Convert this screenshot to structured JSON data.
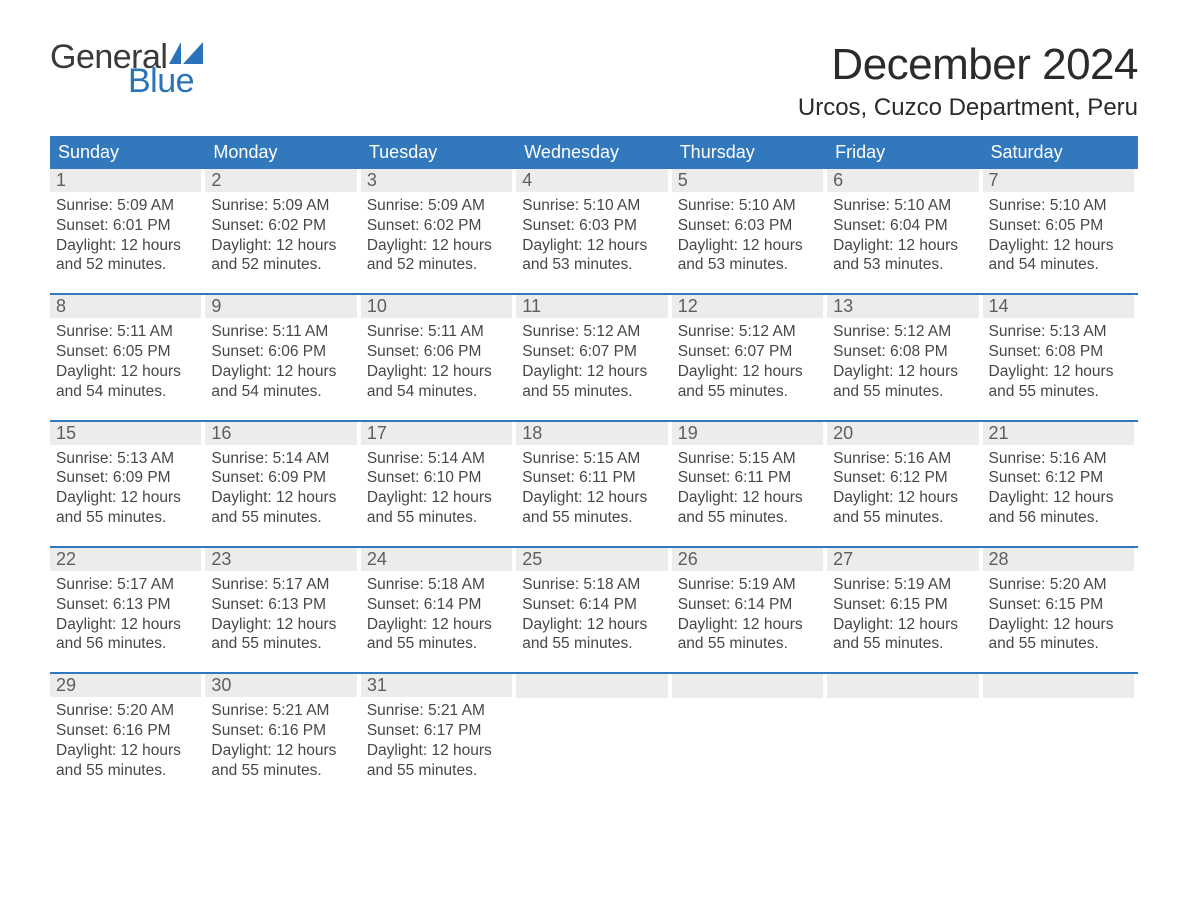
{
  "brand": {
    "word1": "General",
    "word2": "Blue",
    "word1_color": "#3a3a3a",
    "word2_color": "#2a73b8",
    "flag_color": "#2a73b8"
  },
  "header": {
    "month_title": "December 2024",
    "location": "Urcos, Cuzco Department, Peru"
  },
  "colors": {
    "header_bg": "#3178bd",
    "header_text": "#ffffff",
    "daynum_bg": "#ececec",
    "daynum_text": "#5f5f5f",
    "body_text": "#474747",
    "week_divider": "#3178bd",
    "page_bg": "#ffffff"
  },
  "typography": {
    "month_title_size_pt": 33,
    "location_size_pt": 18,
    "weekday_size_pt": 14,
    "daynum_size_pt": 14,
    "body_size_pt": 12
  },
  "calendar": {
    "type": "calendar-grid",
    "columns": 7,
    "weekdays": [
      "Sunday",
      "Monday",
      "Tuesday",
      "Wednesday",
      "Thursday",
      "Friday",
      "Saturday"
    ],
    "weeks": [
      [
        {
          "n": "1",
          "sunrise": "Sunrise: 5:09 AM",
          "sunset": "Sunset: 6:01 PM",
          "dl1": "Daylight: 12 hours",
          "dl2": "and 52 minutes."
        },
        {
          "n": "2",
          "sunrise": "Sunrise: 5:09 AM",
          "sunset": "Sunset: 6:02 PM",
          "dl1": "Daylight: 12 hours",
          "dl2": "and 52 minutes."
        },
        {
          "n": "3",
          "sunrise": "Sunrise: 5:09 AM",
          "sunset": "Sunset: 6:02 PM",
          "dl1": "Daylight: 12 hours",
          "dl2": "and 52 minutes."
        },
        {
          "n": "4",
          "sunrise": "Sunrise: 5:10 AM",
          "sunset": "Sunset: 6:03 PM",
          "dl1": "Daylight: 12 hours",
          "dl2": "and 53 minutes."
        },
        {
          "n": "5",
          "sunrise": "Sunrise: 5:10 AM",
          "sunset": "Sunset: 6:03 PM",
          "dl1": "Daylight: 12 hours",
          "dl2": "and 53 minutes."
        },
        {
          "n": "6",
          "sunrise": "Sunrise: 5:10 AM",
          "sunset": "Sunset: 6:04 PM",
          "dl1": "Daylight: 12 hours",
          "dl2": "and 53 minutes."
        },
        {
          "n": "7",
          "sunrise": "Sunrise: 5:10 AM",
          "sunset": "Sunset: 6:05 PM",
          "dl1": "Daylight: 12 hours",
          "dl2": "and 54 minutes."
        }
      ],
      [
        {
          "n": "8",
          "sunrise": "Sunrise: 5:11 AM",
          "sunset": "Sunset: 6:05 PM",
          "dl1": "Daylight: 12 hours",
          "dl2": "and 54 minutes."
        },
        {
          "n": "9",
          "sunrise": "Sunrise: 5:11 AM",
          "sunset": "Sunset: 6:06 PM",
          "dl1": "Daylight: 12 hours",
          "dl2": "and 54 minutes."
        },
        {
          "n": "10",
          "sunrise": "Sunrise: 5:11 AM",
          "sunset": "Sunset: 6:06 PM",
          "dl1": "Daylight: 12 hours",
          "dl2": "and 54 minutes."
        },
        {
          "n": "11",
          "sunrise": "Sunrise: 5:12 AM",
          "sunset": "Sunset: 6:07 PM",
          "dl1": "Daylight: 12 hours",
          "dl2": "and 55 minutes."
        },
        {
          "n": "12",
          "sunrise": "Sunrise: 5:12 AM",
          "sunset": "Sunset: 6:07 PM",
          "dl1": "Daylight: 12 hours",
          "dl2": "and 55 minutes."
        },
        {
          "n": "13",
          "sunrise": "Sunrise: 5:12 AM",
          "sunset": "Sunset: 6:08 PM",
          "dl1": "Daylight: 12 hours",
          "dl2": "and 55 minutes."
        },
        {
          "n": "14",
          "sunrise": "Sunrise: 5:13 AM",
          "sunset": "Sunset: 6:08 PM",
          "dl1": "Daylight: 12 hours",
          "dl2": "and 55 minutes."
        }
      ],
      [
        {
          "n": "15",
          "sunrise": "Sunrise: 5:13 AM",
          "sunset": "Sunset: 6:09 PM",
          "dl1": "Daylight: 12 hours",
          "dl2": "and 55 minutes."
        },
        {
          "n": "16",
          "sunrise": "Sunrise: 5:14 AM",
          "sunset": "Sunset: 6:09 PM",
          "dl1": "Daylight: 12 hours",
          "dl2": "and 55 minutes."
        },
        {
          "n": "17",
          "sunrise": "Sunrise: 5:14 AM",
          "sunset": "Sunset: 6:10 PM",
          "dl1": "Daylight: 12 hours",
          "dl2": "and 55 minutes."
        },
        {
          "n": "18",
          "sunrise": "Sunrise: 5:15 AM",
          "sunset": "Sunset: 6:11 PM",
          "dl1": "Daylight: 12 hours",
          "dl2": "and 55 minutes."
        },
        {
          "n": "19",
          "sunrise": "Sunrise: 5:15 AM",
          "sunset": "Sunset: 6:11 PM",
          "dl1": "Daylight: 12 hours",
          "dl2": "and 55 minutes."
        },
        {
          "n": "20",
          "sunrise": "Sunrise: 5:16 AM",
          "sunset": "Sunset: 6:12 PM",
          "dl1": "Daylight: 12 hours",
          "dl2": "and 55 minutes."
        },
        {
          "n": "21",
          "sunrise": "Sunrise: 5:16 AM",
          "sunset": "Sunset: 6:12 PM",
          "dl1": "Daylight: 12 hours",
          "dl2": "and 56 minutes."
        }
      ],
      [
        {
          "n": "22",
          "sunrise": "Sunrise: 5:17 AM",
          "sunset": "Sunset: 6:13 PM",
          "dl1": "Daylight: 12 hours",
          "dl2": "and 56 minutes."
        },
        {
          "n": "23",
          "sunrise": "Sunrise: 5:17 AM",
          "sunset": "Sunset: 6:13 PM",
          "dl1": "Daylight: 12 hours",
          "dl2": "and 55 minutes."
        },
        {
          "n": "24",
          "sunrise": "Sunrise: 5:18 AM",
          "sunset": "Sunset: 6:14 PM",
          "dl1": "Daylight: 12 hours",
          "dl2": "and 55 minutes."
        },
        {
          "n": "25",
          "sunrise": "Sunrise: 5:18 AM",
          "sunset": "Sunset: 6:14 PM",
          "dl1": "Daylight: 12 hours",
          "dl2": "and 55 minutes."
        },
        {
          "n": "26",
          "sunrise": "Sunrise: 5:19 AM",
          "sunset": "Sunset: 6:14 PM",
          "dl1": "Daylight: 12 hours",
          "dl2": "and 55 minutes."
        },
        {
          "n": "27",
          "sunrise": "Sunrise: 5:19 AM",
          "sunset": "Sunset: 6:15 PM",
          "dl1": "Daylight: 12 hours",
          "dl2": "and 55 minutes."
        },
        {
          "n": "28",
          "sunrise": "Sunrise: 5:20 AM",
          "sunset": "Sunset: 6:15 PM",
          "dl1": "Daylight: 12 hours",
          "dl2": "and 55 minutes."
        }
      ],
      [
        {
          "n": "29",
          "sunrise": "Sunrise: 5:20 AM",
          "sunset": "Sunset: 6:16 PM",
          "dl1": "Daylight: 12 hours",
          "dl2": "and 55 minutes."
        },
        {
          "n": "30",
          "sunrise": "Sunrise: 5:21 AM",
          "sunset": "Sunset: 6:16 PM",
          "dl1": "Daylight: 12 hours",
          "dl2": "and 55 minutes."
        },
        {
          "n": "31",
          "sunrise": "Sunrise: 5:21 AM",
          "sunset": "Sunset: 6:17 PM",
          "dl1": "Daylight: 12 hours",
          "dl2": "and 55 minutes."
        },
        null,
        null,
        null,
        null
      ]
    ]
  }
}
